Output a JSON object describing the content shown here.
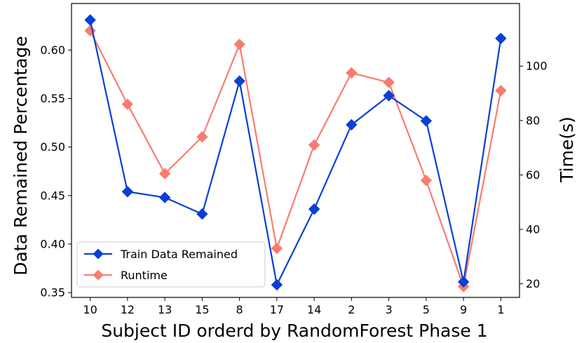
{
  "chart_data": {
    "type": "line",
    "categories": [
      "10",
      "12",
      "13",
      "15",
      "8",
      "17",
      "14",
      "2",
      "3",
      "5",
      "9",
      "1"
    ],
    "xlabel": "Subject ID orderd by RandomForest Phase 1",
    "ylabel_left": "Data Remained Percentage",
    "ylabel_right": "Time(s)",
    "ylim_left": [
      0.345,
      0.648
    ],
    "ylim_right": [
      15,
      123
    ],
    "yticks_left": [
      "0.35",
      "0.40",
      "0.45",
      "0.50",
      "0.55",
      "0.60"
    ],
    "yticks_right": [
      "20",
      "40",
      "60",
      "80",
      "100"
    ],
    "grid": false,
    "legend_position": "lower-left",
    "series": [
      {
        "name": "Train Data Remained",
        "axis": "left",
        "color": "#0a3fd6",
        "marker": "diamond",
        "values": [
          0.631,
          0.454,
          0.448,
          0.431,
          0.568,
          0.358,
          0.436,
          0.523,
          0.553,
          0.527,
          0.361,
          0.612
        ]
      },
      {
        "name": "Runtime",
        "axis": "right",
        "color": "#f97c6f",
        "marker": "diamond",
        "values": [
          113,
          86,
          60.5,
          74,
          108,
          33,
          71,
          97.5,
          94,
          58,
          19,
          91
        ]
      }
    ]
  }
}
